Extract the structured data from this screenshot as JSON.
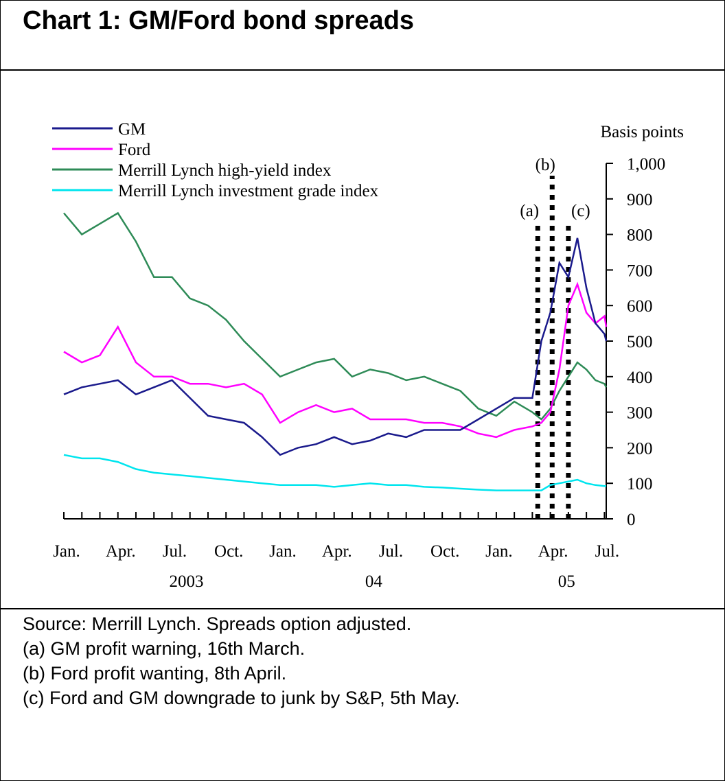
{
  "title": "Chart 1: GM/Ford bond spreads",
  "notes": [
    "Source: Merrill Lynch. Spreads option adjusted.",
    "(a) GM profit warning, 16th March.",
    "(b) Ford profit wanting, 8th April.",
    "(c) Ford and GM downgrade to junk by S&P, 5th May."
  ],
  "chart_data": {
    "type": "line",
    "y_label": "Basis points",
    "x": [
      0,
      1,
      2,
      3,
      4,
      5,
      6,
      7,
      8,
      9,
      10,
      11,
      12,
      13,
      14,
      15,
      16,
      17,
      18,
      19,
      20,
      21,
      22,
      23,
      24,
      25,
      26,
      26.5,
      27,
      27.5,
      28,
      28.5,
      29,
      29.5,
      30,
      30.1
    ],
    "xlim": [
      0,
      30.1
    ],
    "xticks": [
      {
        "value": 0,
        "label": "Jan."
      },
      {
        "value": 3,
        "label": "Apr."
      },
      {
        "value": 6,
        "label": "Jul."
      },
      {
        "value": 9,
        "label": "Oct."
      },
      {
        "value": 12,
        "label": "Jan."
      },
      {
        "value": 15,
        "label": "Apr."
      },
      {
        "value": 18,
        "label": "Jul."
      },
      {
        "value": 21,
        "label": "Oct."
      },
      {
        "value": 24,
        "label": "Jan."
      },
      {
        "value": 27,
        "label": "Apr."
      },
      {
        "value": 30,
        "label": "Jul."
      }
    ],
    "x_minor_ticks": [
      0,
      1,
      2,
      3,
      4,
      5,
      6,
      7,
      8,
      9,
      10,
      11,
      12,
      13,
      14,
      15,
      16,
      17,
      18,
      19,
      20,
      21,
      22,
      23,
      24,
      25,
      26,
      27,
      28,
      29,
      30
    ],
    "x_groups": [
      {
        "value": 6.8,
        "label": "2003"
      },
      {
        "value": 17.2,
        "label": "04"
      },
      {
        "value": 27.9,
        "label": "05"
      }
    ],
    "ylim": [
      0,
      1000
    ],
    "yticks": [
      0,
      100,
      200,
      300,
      400,
      500,
      600,
      700,
      800,
      900,
      {
        "value": 1000,
        "label": "1,000"
      }
    ],
    "events": [
      {
        "value": 26.3,
        "label": "(a)"
      },
      {
        "value": 27.1,
        "label": "(b)"
      },
      {
        "value": 28.0,
        "label": "(c)"
      }
    ],
    "series": [
      {
        "name": "GM",
        "color": "#1a1a8c",
        "values": [
          350,
          370,
          380,
          390,
          350,
          370,
          390,
          340,
          290,
          280,
          270,
          230,
          180,
          200,
          210,
          230,
          210,
          220,
          240,
          230,
          250,
          250,
          250,
          280,
          310,
          340,
          340,
          500,
          580,
          720,
          680,
          790,
          650,
          550,
          520,
          500
        ]
      },
      {
        "name": "Ford",
        "color": "#ff00ff",
        "values": [
          470,
          440,
          460,
          540,
          440,
          400,
          400,
          380,
          380,
          370,
          380,
          350,
          270,
          300,
          320,
          300,
          310,
          280,
          280,
          280,
          270,
          270,
          260,
          240,
          230,
          250,
          260,
          270,
          300,
          420,
          600,
          660,
          580,
          550,
          570,
          540
        ]
      },
      {
        "name": "Merrill Lynch high-yield index",
        "color": "#2e8b57",
        "values": [
          860,
          800,
          830,
          860,
          780,
          680,
          680,
          620,
          600,
          560,
          500,
          450,
          400,
          420,
          440,
          450,
          400,
          420,
          410,
          390,
          400,
          380,
          360,
          310,
          290,
          330,
          300,
          280,
          310,
          360,
          400,
          440,
          420,
          390,
          380,
          370
        ]
      },
      {
        "name": "Merrill Lynch investment grade index",
        "color": "#00e5ee",
        "values": [
          180,
          170,
          170,
          160,
          140,
          130,
          125,
          120,
          115,
          110,
          105,
          100,
          95,
          95,
          95,
          90,
          95,
          100,
          95,
          95,
          90,
          88,
          85,
          82,
          80,
          80,
          80,
          80,
          95,
          100,
          105,
          110,
          100,
          95,
          92,
          92
        ]
      }
    ]
  }
}
